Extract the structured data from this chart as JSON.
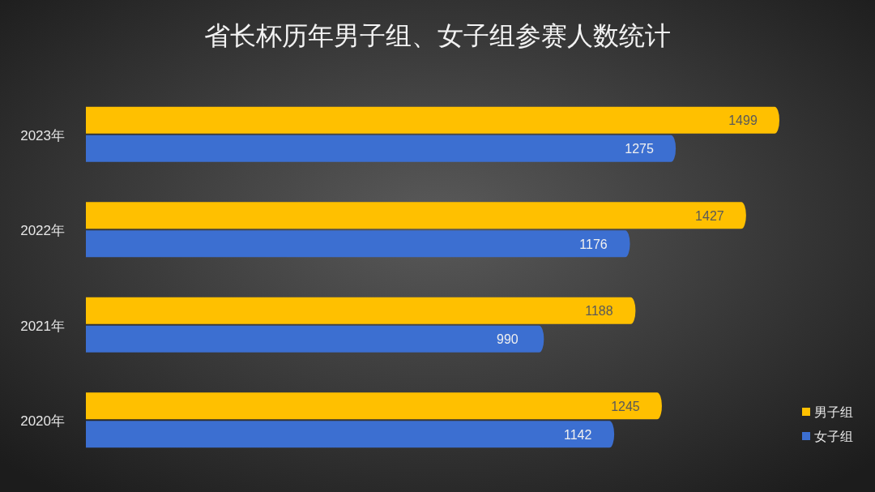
{
  "chart_data": {
    "type": "bar",
    "title": "省长杯历年男子组、女子组参赛人数统计",
    "orientation": "horizontal",
    "categories": [
      "2023年",
      "2022年",
      "2021年",
      "2020年"
    ],
    "series": [
      {
        "name": "男子组",
        "color": "#ffc000",
        "values": [
          1499,
          1427,
          1188,
          1245
        ]
      },
      {
        "name": "女子组",
        "color": "#3c6fd1",
        "values": [
          1275,
          1176,
          990,
          1142
        ]
      }
    ],
    "data_labels": true,
    "legend": "right"
  }
}
